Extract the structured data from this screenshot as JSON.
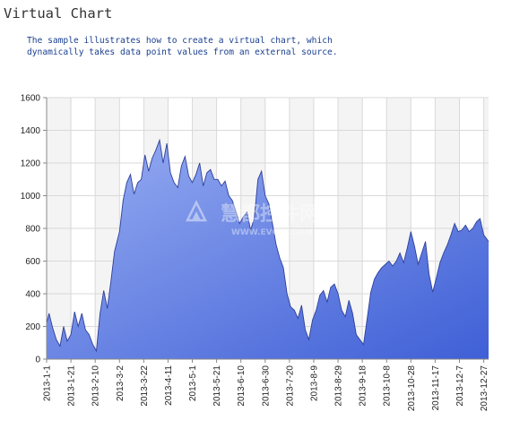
{
  "header": {
    "title": "Virtual Chart",
    "description_lines": [
      "The sample illustrates how to create a virtual chart, which",
      "dynamically takes data point values from an external source."
    ]
  },
  "watermark": {
    "main": "慧都控件网",
    "sub": "WWW.EVGET.COM"
  },
  "colors": {
    "area_top": "#98aef2",
    "area_bottom": "#3f5fd6",
    "area_line": "#2e3f9a",
    "stripe": "#f4f4f4",
    "grid": "#d9d9d9",
    "axis": "#888888"
  },
  "chart_data": {
    "type": "area",
    "title": "",
    "xlabel": "",
    "ylabel": "",
    "x_start": "2013-1-1",
    "x_end": "2013-12-31",
    "ylim": [
      0,
      1600
    ],
    "y_ticks": [
      0,
      200,
      400,
      600,
      800,
      1000,
      1200,
      1400,
      1600
    ],
    "x_ticks": [
      "2013-1-1",
      "2013-1-21",
      "2013-2-10",
      "2013-3-2",
      "2013-3-22",
      "2013-4-11",
      "2013-5-1",
      "2013-5-21",
      "2013-6-10",
      "2013-6-30",
      "2013-7-20",
      "2013-8-9",
      "2013-8-29",
      "2013-9-18",
      "2013-10-8",
      "2013-10-28",
      "2013-11-17",
      "2013-12-7",
      "2013-12-27"
    ],
    "grid": true,
    "legend": "none",
    "series": [
      {
        "x": [
          "2013-1-1",
          "2013-1-3",
          "2013-1-6",
          "2013-1-9",
          "2013-1-12",
          "2013-1-15",
          "2013-1-18",
          "2013-1-21",
          "2013-1-24",
          "2013-1-27",
          "2013-1-30",
          "2013-2-2",
          "2013-2-5",
          "2013-2-8",
          "2013-2-11",
          "2013-2-14",
          "2013-2-17",
          "2013-2-20",
          "2013-2-23",
          "2013-2-26",
          "2013-3-2",
          "2013-3-5",
          "2013-3-8",
          "2013-3-11",
          "2013-3-14",
          "2013-3-17",
          "2013-3-20",
          "2013-3-23",
          "2013-3-26",
          "2013-3-29",
          "2013-4-1",
          "2013-4-4",
          "2013-4-7",
          "2013-4-10",
          "2013-4-13",
          "2013-4-16",
          "2013-4-19",
          "2013-4-22",
          "2013-4-25",
          "2013-4-28",
          "2013-5-1",
          "2013-5-4",
          "2013-5-7",
          "2013-5-10",
          "2013-5-13",
          "2013-5-16",
          "2013-5-19",
          "2013-5-22",
          "2013-5-25",
          "2013-5-28",
          "2013-5-31",
          "2013-6-3",
          "2013-6-6",
          "2013-6-9",
          "2013-6-12",
          "2013-6-15",
          "2013-6-18",
          "2013-6-21",
          "2013-6-24",
          "2013-6-27",
          "2013-6-30",
          "2013-7-3",
          "2013-7-6",
          "2013-7-9",
          "2013-7-12",
          "2013-7-15",
          "2013-7-18",
          "2013-7-21",
          "2013-7-24",
          "2013-7-27",
          "2013-7-30",
          "2013-8-2",
          "2013-8-5",
          "2013-8-8",
          "2013-8-11",
          "2013-8-14",
          "2013-8-17",
          "2013-8-20",
          "2013-8-23",
          "2013-8-26",
          "2013-8-29",
          "2013-9-1",
          "2013-9-4",
          "2013-9-7",
          "2013-9-10",
          "2013-9-13",
          "2013-9-16",
          "2013-9-19",
          "2013-9-22",
          "2013-9-25",
          "2013-9-28",
          "2013-10-1",
          "2013-10-4",
          "2013-10-7",
          "2013-10-10",
          "2013-10-13",
          "2013-10-16",
          "2013-10-19",
          "2013-10-22",
          "2013-10-25",
          "2013-10-28",
          "2013-10-31",
          "2013-11-3",
          "2013-11-6",
          "2013-11-9",
          "2013-11-12",
          "2013-11-15",
          "2013-11-18",
          "2013-11-21",
          "2013-11-24",
          "2013-11-27",
          "2013-11-30",
          "2013-12-3",
          "2013-12-6",
          "2013-12-9",
          "2013-12-12",
          "2013-12-15",
          "2013-12-18",
          "2013-12-21",
          "2013-12-24",
          "2013-12-27",
          "2013-12-31"
        ],
        "y": [
          220,
          280,
          190,
          120,
          80,
          200,
          110,
          150,
          290,
          200,
          280,
          180,
          150,
          90,
          50,
          280,
          420,
          310,
          480,
          660,
          780,
          970,
          1080,
          1130,
          1010,
          1080,
          1100,
          1250,
          1150,
          1230,
          1280,
          1340,
          1200,
          1320,
          1140,
          1080,
          1050,
          1180,
          1240,
          1120,
          1080,
          1130,
          1200,
          1060,
          1140,
          1160,
          1100,
          1100,
          1060,
          1090,
          1000,
          970,
          900,
          830,
          870,
          900,
          790,
          860,
          1100,
          1150,
          1000,
          950,
          830,
          700,
          620,
          560,
          400,
          320,
          300,
          250,
          330,
          180,
          120,
          240,
          300,
          390,
          420,
          350,
          440,
          460,
          400,
          300,
          260,
          360,
          280,
          150,
          120,
          90,
          250,
          410,
          490,
          530,
          560,
          580,
          600,
          570,
          600,
          650,
          590,
          680,
          780,
          690,
          580,
          650,
          720,
          520,
          410,
          500,
          590,
          650,
          700,
          760,
          830,
          780,
          790,
          820,
          780,
          800,
          840,
          860,
          760,
          720
        ]
      }
    ]
  }
}
